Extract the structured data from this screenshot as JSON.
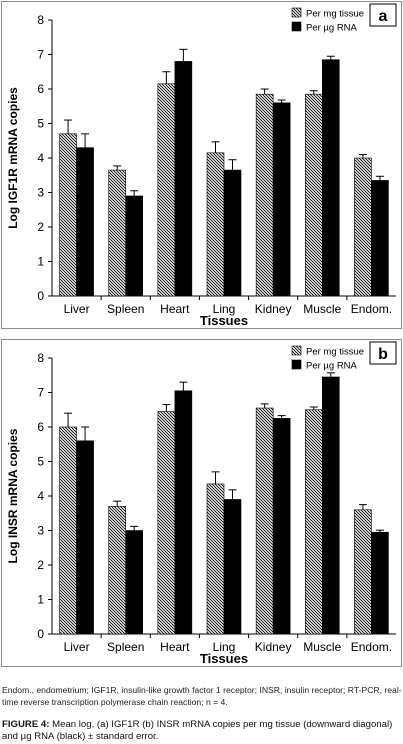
{
  "chart_data": [
    {
      "type": "bar",
      "panel_label": "a",
      "categories": [
        "Liver",
        "Spleen",
        "Heart",
        "Ling",
        "Kidney",
        "Muscle",
        "Endom."
      ],
      "xlabel": "Tissues",
      "ylabel": "Log IGF1R mRNA copies",
      "ylim": [
        0,
        8
      ],
      "yticks": [
        0,
        1,
        2,
        3,
        4,
        5,
        6,
        7,
        8
      ],
      "legend_position": "top-right",
      "series": [
        {
          "name": "Per mg tissue",
          "values": [
            4.7,
            3.65,
            6.15,
            4.15,
            5.85,
            5.85,
            4.0
          ],
          "errors": [
            0.4,
            0.12,
            0.35,
            0.32,
            0.15,
            0.1,
            0.1
          ]
        },
        {
          "name": "Per µg RNA",
          "values": [
            4.3,
            2.9,
            6.8,
            3.65,
            5.6,
            6.85,
            3.35
          ],
          "errors": [
            0.4,
            0.15,
            0.35,
            0.3,
            0.08,
            0.1,
            0.12
          ]
        }
      ]
    },
    {
      "type": "bar",
      "panel_label": "b",
      "categories": [
        "Liver",
        "Spleen",
        "Heart",
        "Ling",
        "Kidney",
        "Muscle",
        "Endom."
      ],
      "xlabel": "Tissues",
      "ylabel": "Log INSR mRNA copies",
      "ylim": [
        0,
        8
      ],
      "yticks": [
        0,
        1,
        2,
        3,
        4,
        5,
        6,
        7,
        8
      ],
      "legend_position": "top-right",
      "series": [
        {
          "name": "Per mg tissue",
          "values": [
            6.0,
            3.7,
            6.45,
            4.35,
            6.55,
            6.5,
            3.6
          ],
          "errors": [
            0.4,
            0.15,
            0.2,
            0.35,
            0.12,
            0.08,
            0.15
          ]
        },
        {
          "name": "Per µg RNA",
          "values": [
            5.6,
            3.0,
            7.05,
            3.9,
            6.25,
            7.45,
            2.95
          ],
          "errors": [
            0.4,
            0.12,
            0.25,
            0.28,
            0.08,
            0.12,
            0.06
          ]
        }
      ]
    }
  ],
  "footnote": "Endom., endometrium; IGF1R, insulin-like growth factor 1 receptor; INSR, insulin receptor; RT-PCR, real-time reverse transcription polymerase chain reaction; n = 4.",
  "figure_caption": {
    "label": "FIGURE 4:",
    "text": " Mean log, (a) IGF1R (b) INSR mRNA copies per mg tissue (downward diagonal) and µg RNA (black) ± standard error."
  },
  "colors": {
    "bar_solid": "#000000",
    "bar_pattern": "#000000",
    "frame": "#8c8c8c",
    "axis": "#000000"
  }
}
